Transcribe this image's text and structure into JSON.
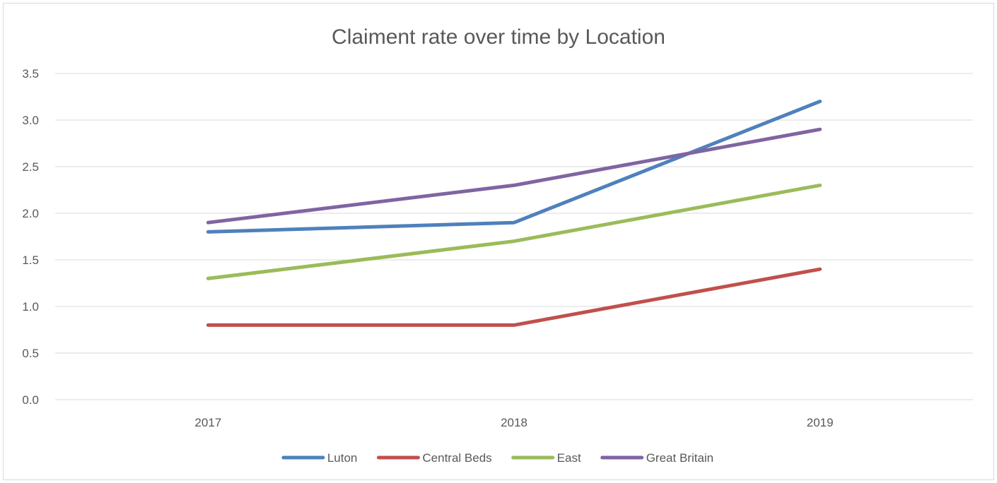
{
  "chart_data": {
    "type": "line",
    "title": "Claiment rate over time by Location",
    "xlabel": "",
    "ylabel": "",
    "categories": [
      "2017",
      "2018",
      "2019"
    ],
    "y_ticks": [
      "0.0",
      "0.5",
      "1.0",
      "1.5",
      "2.0",
      "2.5",
      "3.0",
      "3.5"
    ],
    "ylim": [
      0,
      3.5
    ],
    "grid": true,
    "legend_position": "bottom",
    "series": [
      {
        "name": "Luton",
        "values": [
          1.8,
          1.9,
          3.2
        ],
        "color": "#4e81bd"
      },
      {
        "name": "Central Beds",
        "values": [
          0.8,
          0.8,
          1.4
        ],
        "color": "#c0504d"
      },
      {
        "name": "East",
        "values": [
          1.3,
          1.7,
          2.3
        ],
        "color": "#9bbb59"
      },
      {
        "name": "Great Britain",
        "values": [
          1.9,
          2.3,
          2.9
        ],
        "color": "#8064a2"
      }
    ]
  }
}
